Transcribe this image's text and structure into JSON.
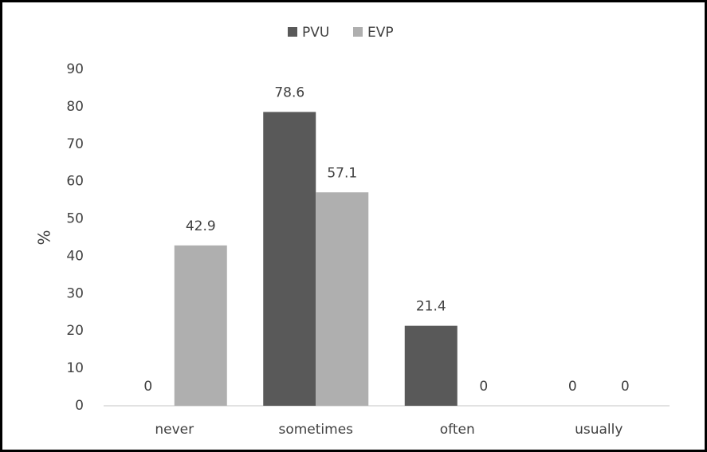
{
  "chart_data": {
    "type": "bar",
    "y_label": "%",
    "categories": [
      "never",
      "sometimes",
      "often",
      "usually"
    ],
    "series": [
      {
        "name": "PVU",
        "color": "#595959",
        "values": [
          0,
          78.6,
          21.4,
          0
        ]
      },
      {
        "name": "EVP",
        "color": "#afafaf",
        "values": [
          42.9,
          57.1,
          0,
          0
        ]
      }
    ],
    "ylim": [
      0,
      90
    ],
    "yticks": [
      0,
      10,
      20,
      30,
      40,
      50,
      60,
      70,
      80,
      90
    ],
    "legend": "top",
    "grid": false
  }
}
